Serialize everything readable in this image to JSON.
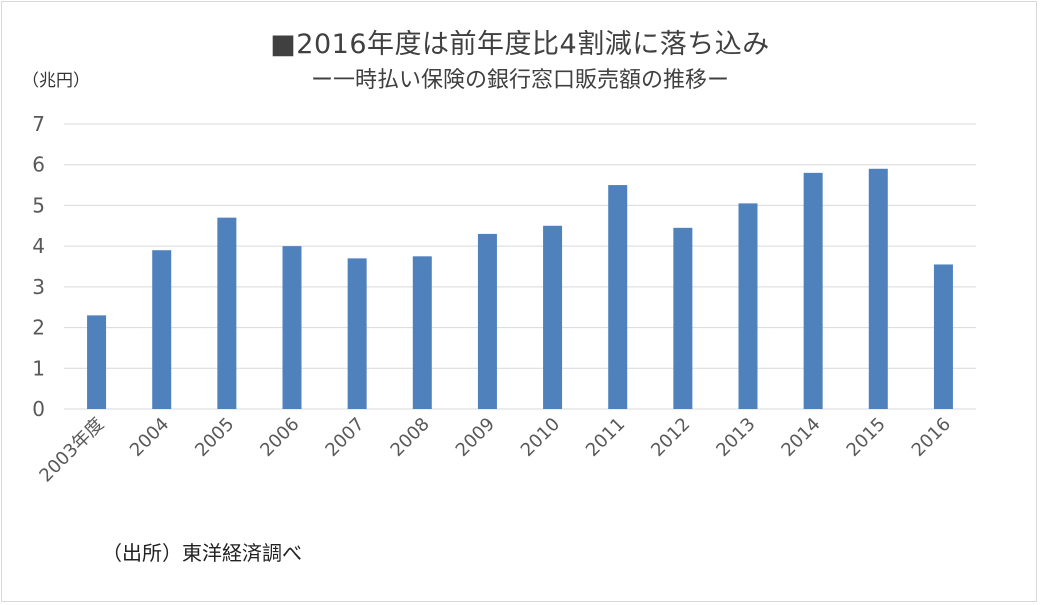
{
  "chart_data": {
    "type": "bar",
    "title": "■2016年度は前年度比4割減に落ち込み",
    "subtitle": "ー一時払い保険の銀行窓口販売額の推移ー",
    "unit_label": "（兆円）",
    "source_note": "（出所）東洋経済調べ",
    "categories": [
      "2003年度",
      "2004",
      "2005",
      "2006",
      "2007",
      "2008",
      "2009",
      "2010",
      "2011",
      "2012",
      "2013",
      "2014",
      "2015",
      "2016"
    ],
    "values": [
      2.3,
      3.9,
      4.7,
      4.0,
      3.7,
      3.75,
      4.3,
      4.5,
      5.5,
      4.45,
      5.05,
      5.8,
      5.9,
      3.55
    ],
    "ylim": [
      0,
      7
    ],
    "yticks": [
      0,
      1,
      2,
      3,
      4,
      5,
      6,
      7
    ],
    "grid": true,
    "colors": {
      "bar": "#4f81bd",
      "grid": "#d9d9d9",
      "text": "#595959"
    }
  }
}
